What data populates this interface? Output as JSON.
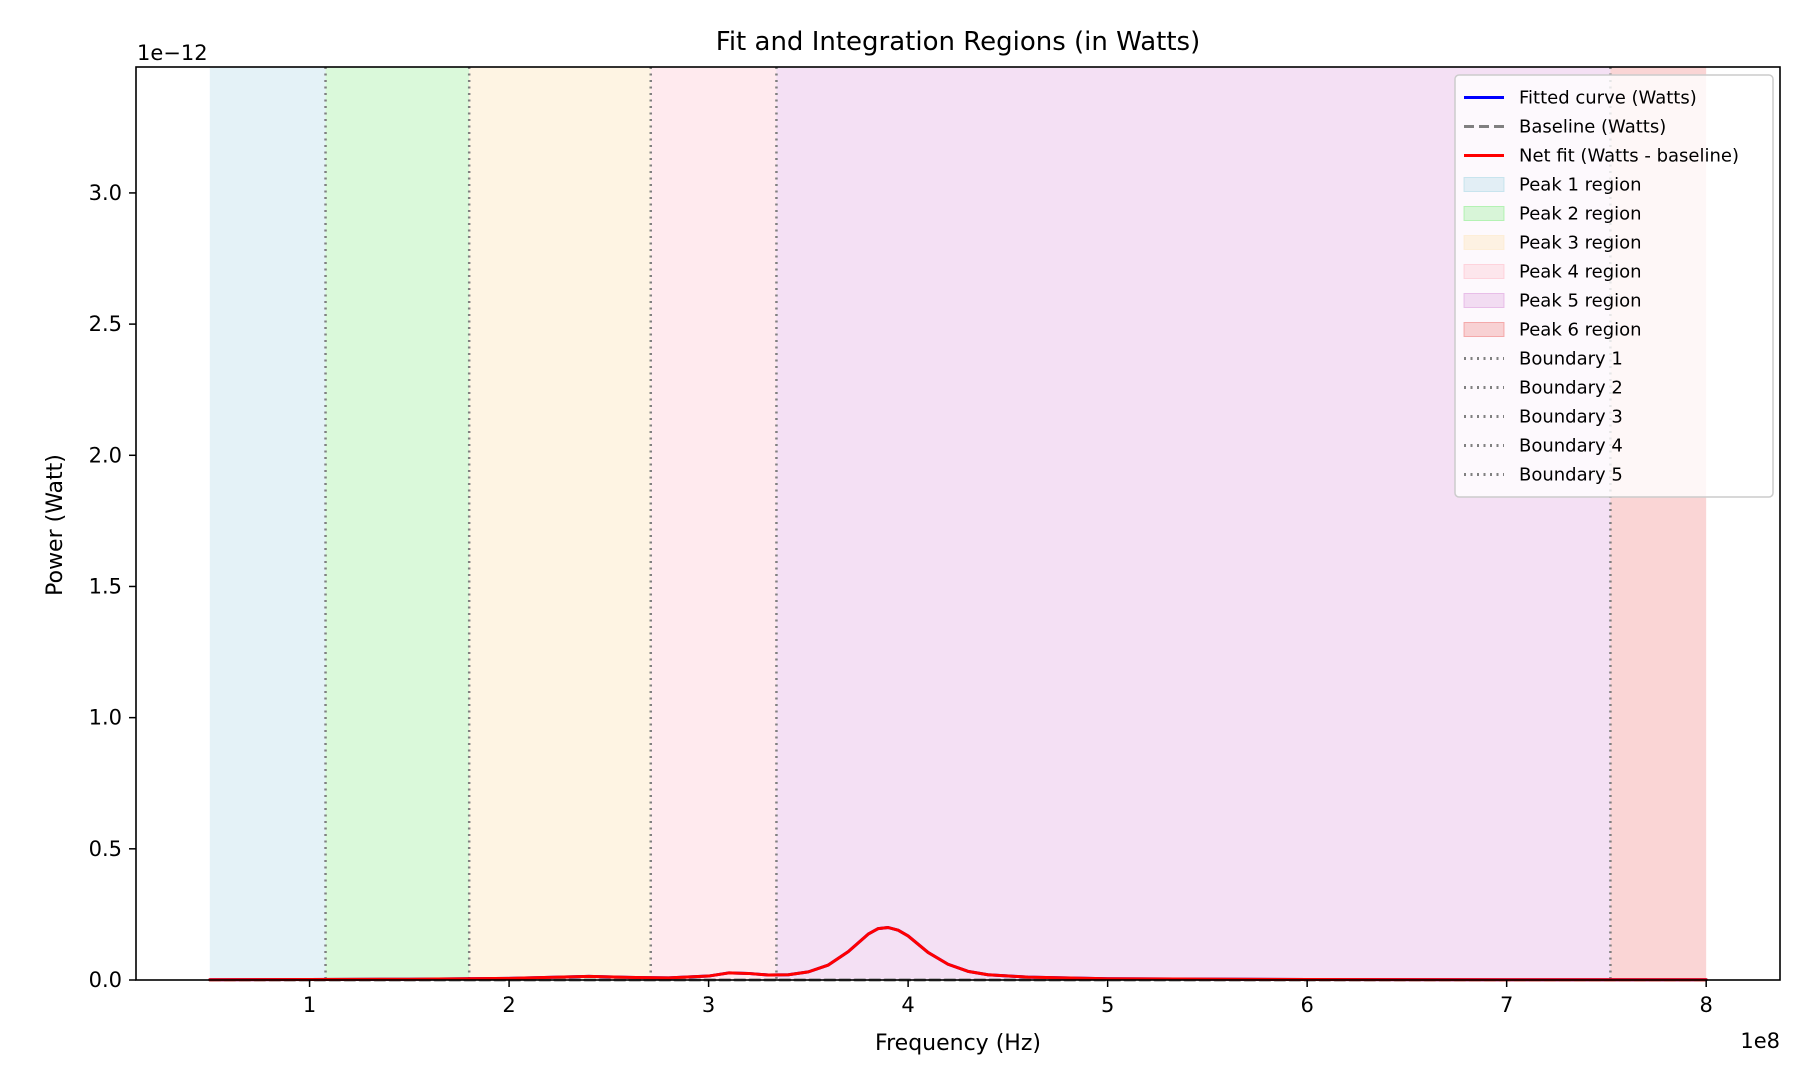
{
  "chart_data": {
    "type": "line",
    "title": "Fit and Integration Regions (in Watts)",
    "xlabel": "Frequency (Hz)",
    "ylabel": "Power (Watt)",
    "x_offset_text": "1e8",
    "y_offset_text": "1e−12",
    "xlim": [
      0.13,
      8.37
    ],
    "ylim": [
      0.0,
      3.48
    ],
    "x_ticks": [
      1,
      2,
      3,
      4,
      5,
      6,
      7,
      8
    ],
    "x_tick_labels": [
      "1",
      "2",
      "3",
      "4",
      "5",
      "6",
      "7",
      "8"
    ],
    "y_ticks": [
      0.0,
      0.5,
      1.0,
      1.5,
      2.0,
      2.5,
      3.0
    ],
    "y_tick_labels": [
      "0.0",
      "0.5",
      "1.0",
      "1.5",
      "2.0",
      "2.5",
      "3.0"
    ],
    "grid": false,
    "legend_position": "top-right",
    "regions": [
      {
        "name": "Peak 1 region",
        "x_start": 0.5,
        "x_end": 1.08,
        "color": "#add8e6",
        "alpha": 0.33
      },
      {
        "name": "Peak 2 region",
        "x_start": 1.08,
        "x_end": 1.8,
        "color": "#90ee90",
        "alpha": 0.33
      },
      {
        "name": "Peak 3 region",
        "x_start": 1.8,
        "x_end": 2.71,
        "color": "#fde9c8",
        "alpha": 0.5
      },
      {
        "name": "Peak 4 region",
        "x_start": 2.71,
        "x_end": 3.34,
        "color": "#ffc0cb",
        "alpha": 0.33
      },
      {
        "name": "Peak 5 region",
        "x_start": 3.34,
        "x_end": 7.52,
        "color": "#dda0dd",
        "alpha": 0.33
      },
      {
        "name": "Peak 6 region",
        "x_start": 7.52,
        "x_end": 8.0,
        "color": "#f08080",
        "alpha": 0.33
      }
    ],
    "boundaries": [
      {
        "name": "Boundary 1",
        "x": 1.08
      },
      {
        "name": "Boundary 2",
        "x": 1.8
      },
      {
        "name": "Boundary 3",
        "x": 2.71
      },
      {
        "name": "Boundary 4",
        "x": 3.34
      },
      {
        "name": "Boundary 5",
        "x": 7.52
      }
    ],
    "series": [
      {
        "name": "Fitted curve (Watts)",
        "color": "#0000ff",
        "style": "solid",
        "x": [
          0.5,
          1.0,
          1.5,
          2.0,
          2.2,
          2.4,
          2.6,
          2.8,
          3.0,
          3.1,
          3.2,
          3.3,
          3.4,
          3.5,
          3.6,
          3.7,
          3.8,
          3.85,
          3.9,
          3.95,
          4.0,
          4.1,
          4.2,
          4.3,
          4.4,
          4.6,
          5.0,
          6.0,
          7.0,
          8.0
        ],
        "y": [
          0.001,
          0.002,
          0.003,
          0.006,
          0.01,
          0.014,
          0.01,
          0.008,
          0.015,
          0.027,
          0.025,
          0.019,
          0.02,
          0.031,
          0.057,
          0.108,
          0.175,
          0.196,
          0.2,
          0.19,
          0.168,
          0.105,
          0.06,
          0.033,
          0.02,
          0.011,
          0.005,
          0.002,
          0.001,
          0.001
        ]
      },
      {
        "name": "Baseline (Watts)",
        "color": "#808080",
        "style": "dashed",
        "x": [
          0.5,
          8.0
        ],
        "y": [
          0.0,
          0.0
        ]
      },
      {
        "name": "Net fit (Watts - baseline)",
        "color": "#ff0000",
        "style": "solid",
        "x": [
          0.5,
          1.0,
          1.5,
          2.0,
          2.2,
          2.4,
          2.6,
          2.8,
          3.0,
          3.1,
          3.2,
          3.3,
          3.4,
          3.5,
          3.6,
          3.7,
          3.8,
          3.85,
          3.9,
          3.95,
          4.0,
          4.1,
          4.2,
          4.3,
          4.4,
          4.6,
          5.0,
          6.0,
          7.0,
          8.0
        ],
        "y": [
          0.001,
          0.002,
          0.003,
          0.006,
          0.01,
          0.014,
          0.01,
          0.008,
          0.015,
          0.027,
          0.025,
          0.019,
          0.02,
          0.031,
          0.057,
          0.108,
          0.175,
          0.196,
          0.2,
          0.19,
          0.168,
          0.105,
          0.06,
          0.033,
          0.02,
          0.011,
          0.005,
          0.002,
          0.001,
          0.001
        ]
      }
    ],
    "legend": [
      {
        "label": "Fitted curve (Watts)",
        "kind": "line",
        "color": "#0000ff",
        "dash": "solid"
      },
      {
        "label": "Baseline (Watts)",
        "kind": "line",
        "color": "#808080",
        "dash": "dashed"
      },
      {
        "label": "Net fit (Watts - baseline)",
        "kind": "line",
        "color": "#ff0000",
        "dash": "solid"
      },
      {
        "label": "Peak 1 region",
        "kind": "patch",
        "color": "#add8e6",
        "alpha": 0.33
      },
      {
        "label": "Peak 2 region",
        "kind": "patch",
        "color": "#90ee90",
        "alpha": 0.33
      },
      {
        "label": "Peak 3 region",
        "kind": "patch",
        "color": "#fde9c8",
        "alpha": 0.5
      },
      {
        "label": "Peak 4 region",
        "kind": "patch",
        "color": "#ffc0cb",
        "alpha": 0.33
      },
      {
        "label": "Peak 5 region",
        "kind": "patch",
        "color": "#dda0dd",
        "alpha": 0.33
      },
      {
        "label": "Peak 6 region",
        "kind": "patch",
        "color": "#f08080",
        "alpha": 0.33
      },
      {
        "label": "Boundary 1",
        "kind": "line",
        "color": "#808080",
        "dash": "dotted"
      },
      {
        "label": "Boundary 2",
        "kind": "line",
        "color": "#808080",
        "dash": "dotted"
      },
      {
        "label": "Boundary 3",
        "kind": "line",
        "color": "#808080",
        "dash": "dotted"
      },
      {
        "label": "Boundary 4",
        "kind": "line",
        "color": "#808080",
        "dash": "dotted"
      },
      {
        "label": "Boundary 5",
        "kind": "line",
        "color": "#808080",
        "dash": "dotted"
      }
    ]
  }
}
